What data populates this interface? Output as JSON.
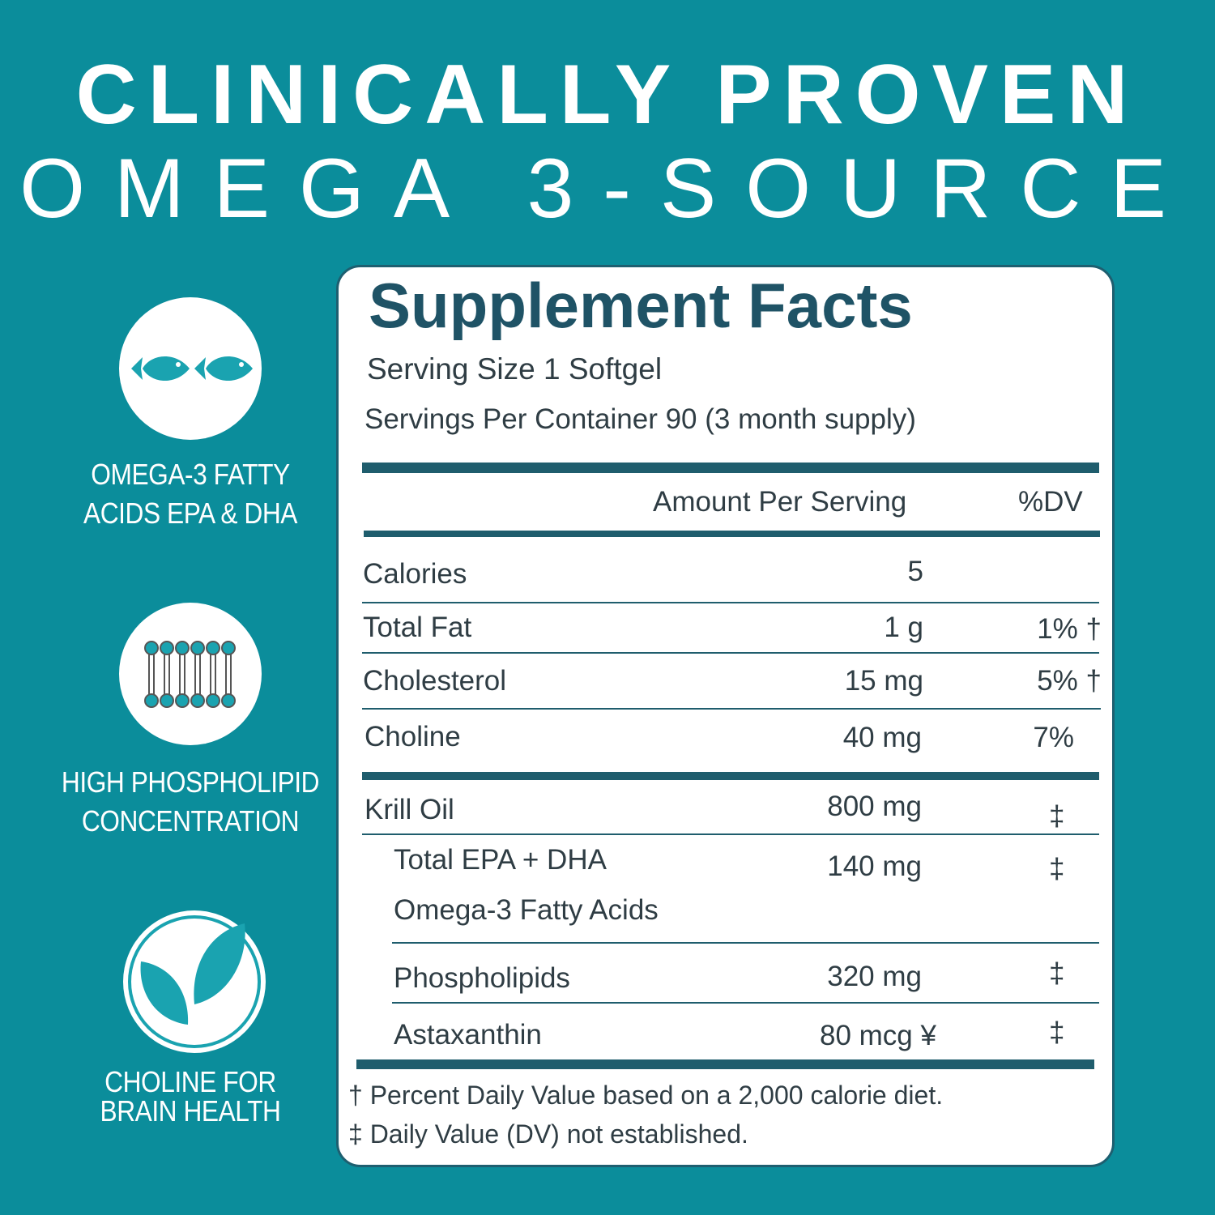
{
  "header": {
    "line1": "CLINICALLY PROVEN",
    "line2": "OMEGA 3-SOURCE"
  },
  "features": [
    {
      "lines": [
        "OMEGA-3 FATTY",
        "ACIDS EPA & DHA"
      ]
    },
    {
      "lines": [
        "HIGH PHOSPHOLIPID",
        "CONCENTRATION"
      ]
    },
    {
      "lines": [
        "CHOLINE FOR",
        "BRAIN HEALTH"
      ]
    }
  ],
  "facts": {
    "title": "Supplement Facts",
    "serving_size": "Serving Size 1 Softgel",
    "servings_per_container": "Servings Per Container 90 (3 month supply)",
    "columns": [
      "Amount Per Serving",
      "%DV"
    ],
    "rows": [
      {
        "name": "Calories",
        "amount": "5"
      },
      {
        "name": "Total Fat",
        "amount": "1 g",
        "dv": "1% †"
      },
      {
        "name": "Cholesterol",
        "amount": "15 mg",
        "dv": "5% †"
      },
      {
        "name": "Choline",
        "amount": "40 mg",
        "dv": "7%"
      },
      {
        "name": "Krill Oil",
        "amount": "800 mg",
        "dv": "‡"
      },
      {
        "name": [
          "Total EPA + DHA",
          "Omega-3 Fatty Acids"
        ],
        "amount": "140 mg",
        "dv": "‡"
      },
      {
        "name": "Phospholipids",
        "amount": "320 mg",
        "dv": "‡"
      },
      {
        "name": "Astaxanthin",
        "amount": "80 mcg ¥",
        "dv": "‡"
      }
    ],
    "footnotes": [
      "† Percent Daily Value based on a 2,000 calorie diet.",
      "‡ Daily Value (DV) not established."
    ]
  }
}
